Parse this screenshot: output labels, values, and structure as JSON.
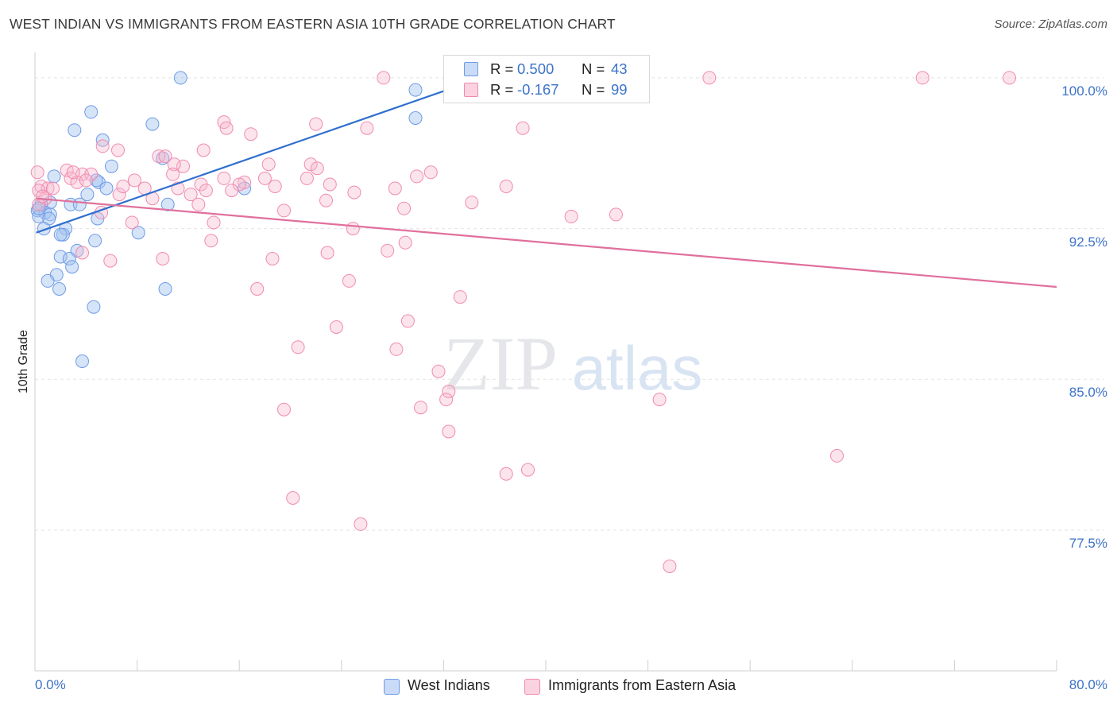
{
  "title": "WEST INDIAN VS IMMIGRANTS FROM EASTERN ASIA 10TH GRADE CORRELATION CHART",
  "source": "Source: ZipAtlas.com",
  "watermark": {
    "zip": "ZIP",
    "atlas": "atlas"
  },
  "legend": {
    "r_label": "R =",
    "n_label": "N =",
    "rows": [
      {
        "r": "0.500",
        "n": "43",
        "color": "#6f9be6"
      },
      {
        "r": "-0.167",
        "n": "99",
        "color": "#f08bb0"
      }
    ]
  },
  "chart_data": {
    "type": "scatter",
    "title": "WEST INDIAN VS IMMIGRANTS FROM EASTERN ASIA 10TH GRADE CORRELATION CHART",
    "ylabel": "10th Grade",
    "xlabel": "",
    "xlim": [
      0,
      80
    ],
    "ylim": [
      70.5,
      101.5
    ],
    "x_tick_labels": [
      "0.0%",
      "80.0%"
    ],
    "y_ticks": [
      77.5,
      85.0,
      92.5,
      100.0
    ],
    "y_tick_labels": [
      "77.5%",
      "85.0%",
      "92.5%",
      "100.0%"
    ],
    "grid": true,
    "legend_position": "top-center",
    "series": [
      {
        "name": "West Indians",
        "color": "#6f9be6",
        "line_color": "#2f6fcf",
        "trend": {
          "x": [
            0.1,
            35.0
          ],
          "y": [
            92.3,
            100.0
          ]
        },
        "points": [
          [
            11.4,
            100.0
          ],
          [
            29.8,
            99.4
          ],
          [
            4.4,
            98.3
          ],
          [
            29.8,
            98.0
          ],
          [
            9.2,
            97.7
          ],
          [
            3.1,
            97.4
          ],
          [
            5.3,
            96.9
          ],
          [
            10.0,
            96.0
          ],
          [
            6.0,
            95.6
          ],
          [
            1.5,
            95.1
          ],
          [
            5.0,
            94.8
          ],
          [
            4.8,
            94.9
          ],
          [
            16.4,
            94.5
          ],
          [
            5.6,
            94.5
          ],
          [
            4.1,
            94.2
          ],
          [
            1.2,
            93.8
          ],
          [
            0.5,
            93.7
          ],
          [
            2.8,
            93.7
          ],
          [
            3.5,
            93.7
          ],
          [
            10.4,
            93.7
          ],
          [
            0.2,
            93.4
          ],
          [
            0.8,
            93.3
          ],
          [
            1.2,
            93.2
          ],
          [
            0.3,
            93.1
          ],
          [
            1.1,
            93.0
          ],
          [
            4.9,
            93.0
          ],
          [
            2.4,
            92.5
          ],
          [
            0.7,
            92.5
          ],
          [
            8.1,
            92.3
          ],
          [
            2.2,
            92.2
          ],
          [
            2.0,
            92.2
          ],
          [
            4.7,
            91.9
          ],
          [
            3.3,
            91.4
          ],
          [
            2.0,
            91.1
          ],
          [
            2.7,
            91.0
          ],
          [
            2.9,
            90.6
          ],
          [
            1.7,
            90.2
          ],
          [
            1.0,
            89.9
          ],
          [
            1.9,
            89.5
          ],
          [
            10.2,
            89.5
          ],
          [
            4.6,
            88.6
          ],
          [
            3.7,
            85.9
          ],
          [
            0.3,
            93.5
          ]
        ]
      },
      {
        "name": "Immigrants from Eastern Asia",
        "color": "#f08bb0",
        "line_color": "#e0709c",
        "trend": {
          "x": [
            0.1,
            80.0
          ],
          "y": [
            94.0,
            89.6
          ]
        },
        "points": [
          [
            27.3,
            100.0
          ],
          [
            37.3,
            100.0
          ],
          [
            40.5,
            100.0
          ],
          [
            52.8,
            100.0
          ],
          [
            69.5,
            100.0
          ],
          [
            76.3,
            100.0
          ],
          [
            14.8,
            97.8
          ],
          [
            22.0,
            97.7
          ],
          [
            15.0,
            97.5
          ],
          [
            26.0,
            97.5
          ],
          [
            38.2,
            97.5
          ],
          [
            16.9,
            97.2
          ],
          [
            5.3,
            96.6
          ],
          [
            6.5,
            96.4
          ],
          [
            13.2,
            96.4
          ],
          [
            9.7,
            96.1
          ],
          [
            10.2,
            96.1
          ],
          [
            11.6,
            95.6
          ],
          [
            10.9,
            95.7
          ],
          [
            18.3,
            95.7
          ],
          [
            21.6,
            95.7
          ],
          [
            22.1,
            95.5
          ],
          [
            2.5,
            95.4
          ],
          [
            0.2,
            95.3
          ],
          [
            31.0,
            95.3
          ],
          [
            3.7,
            95.2
          ],
          [
            4.4,
            95.2
          ],
          [
            29.9,
            95.1
          ],
          [
            2.8,
            95.0
          ],
          [
            14.8,
            95.0
          ],
          [
            18.0,
            95.0
          ],
          [
            21.3,
            95.0
          ],
          [
            3.3,
            94.8
          ],
          [
            16.4,
            94.8
          ],
          [
            7.8,
            94.9
          ],
          [
            13.0,
            94.7
          ],
          [
            16.0,
            94.7
          ],
          [
            23.1,
            94.7
          ],
          [
            36.9,
            94.6
          ],
          [
            0.5,
            94.6
          ],
          [
            18.8,
            94.6
          ],
          [
            8.6,
            94.5
          ],
          [
            1.0,
            94.5
          ],
          [
            0.3,
            94.4
          ],
          [
            11.2,
            94.5
          ],
          [
            13.4,
            94.4
          ],
          [
            15.4,
            94.4
          ],
          [
            28.2,
            94.5
          ],
          [
            25.0,
            94.3
          ],
          [
            6.6,
            94.2
          ],
          [
            12.2,
            94.2
          ],
          [
            9.2,
            94.0
          ],
          [
            0.8,
            94.0
          ],
          [
            22.8,
            93.9
          ],
          [
            34.2,
            93.8
          ],
          [
            12.8,
            93.7
          ],
          [
            19.5,
            93.4
          ],
          [
            28.9,
            93.5
          ],
          [
            5.2,
            93.3
          ],
          [
            42.0,
            93.1
          ],
          [
            45.5,
            93.2
          ],
          [
            0.3,
            93.7
          ],
          [
            14.0,
            92.8
          ],
          [
            7.6,
            92.8
          ],
          [
            24.9,
            92.5
          ],
          [
            13.8,
            91.9
          ],
          [
            29.0,
            91.8
          ],
          [
            27.6,
            91.4
          ],
          [
            3.7,
            91.3
          ],
          [
            22.9,
            91.3
          ],
          [
            18.6,
            91.0
          ],
          [
            5.9,
            90.9
          ],
          [
            10.0,
            91.0
          ],
          [
            24.6,
            89.9
          ],
          [
            17.4,
            89.5
          ],
          [
            33.3,
            89.1
          ],
          [
            29.2,
            87.9
          ],
          [
            23.6,
            87.6
          ],
          [
            28.3,
            86.5
          ],
          [
            20.6,
            86.6
          ],
          [
            31.6,
            85.4
          ],
          [
            32.4,
            84.4
          ],
          [
            32.2,
            84.0
          ],
          [
            48.9,
            84.0
          ],
          [
            30.2,
            83.6
          ],
          [
            19.5,
            83.5
          ],
          [
            32.4,
            82.4
          ],
          [
            62.8,
            81.2
          ],
          [
            38.6,
            80.5
          ],
          [
            36.9,
            80.3
          ],
          [
            20.2,
            79.1
          ],
          [
            25.5,
            77.8
          ],
          [
            49.7,
            75.7
          ],
          [
            0.6,
            94.1
          ],
          [
            1.4,
            94.5
          ],
          [
            3.0,
            95.3
          ],
          [
            4.0,
            94.9
          ],
          [
            6.9,
            94.6
          ],
          [
            10.8,
            95.2
          ]
        ]
      }
    ]
  },
  "bottom_legend": [
    {
      "label": "West Indians"
    },
    {
      "label": "Immigrants from Eastern Asia"
    }
  ]
}
